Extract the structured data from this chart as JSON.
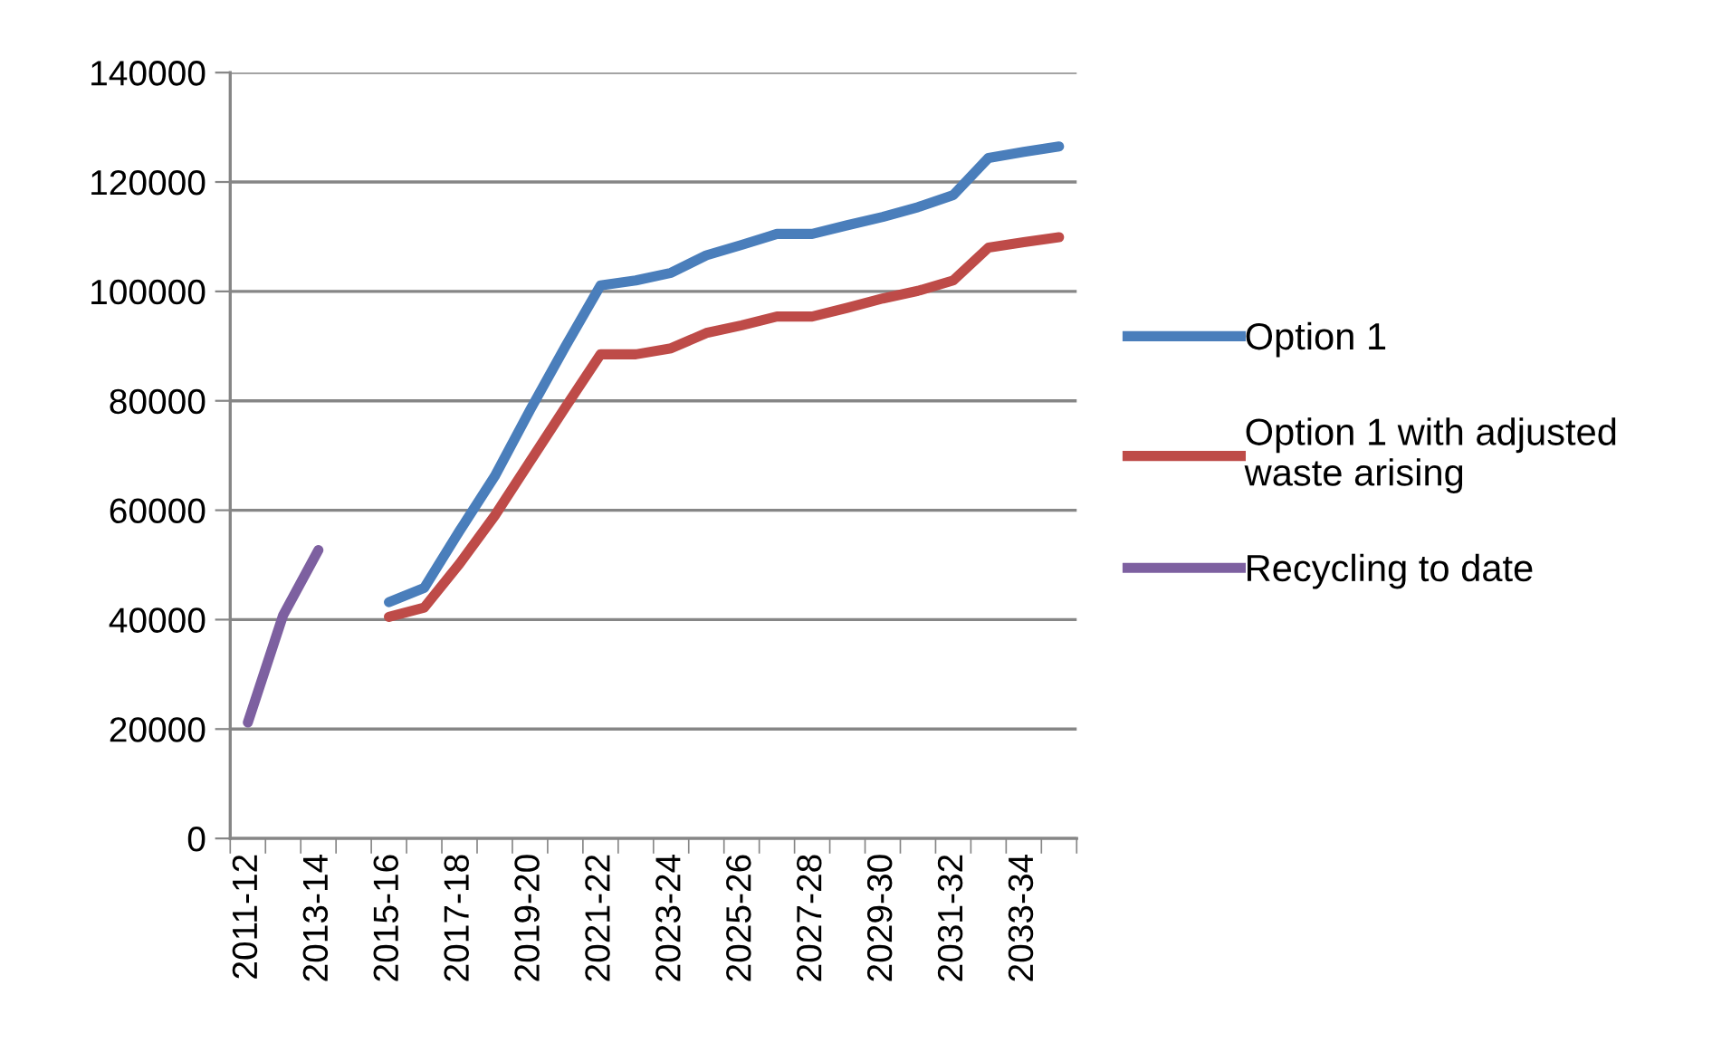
{
  "chart_data": {
    "type": "line",
    "categories": [
      "2011-12",
      null,
      "2013-14",
      null,
      "2015-16",
      null,
      "2017-18",
      null,
      "2019-20",
      null,
      "2021-22",
      null,
      "2023-24",
      null,
      "2025-26",
      null,
      "2027-28",
      null,
      "2029-30",
      null,
      "2031-32",
      null,
      "2033-34",
      null
    ],
    "series": [
      {
        "name": "Option 1",
        "color": "#4a7ebb",
        "values": [
          null,
          null,
          null,
          null,
          43200,
          45800,
          56200,
          66200,
          78300,
          89900,
          101100,
          102000,
          103400,
          106600,
          108500,
          110500,
          110500,
          112100,
          113600,
          115400,
          117600,
          124400,
          125500,
          126500
        ]
      },
      {
        "name": "Option 1 with adjusted\nwaste arising",
        "color": "#be4b48",
        "values": [
          null,
          null,
          null,
          null,
          40500,
          42200,
          50200,
          59000,
          68900,
          78800,
          88500,
          88500,
          89600,
          92400,
          93800,
          95400,
          95400,
          97000,
          98700,
          100100,
          102000,
          108000,
          109000,
          109900
        ]
      },
      {
        "name": "Recycling to date",
        "color": "#7d60a0",
        "values": [
          21200,
          40800,
          52700,
          null,
          null,
          null,
          null,
          null,
          null,
          null,
          null,
          null,
          null,
          null,
          null,
          null,
          null,
          null,
          null,
          null,
          null,
          null,
          null,
          null
        ]
      }
    ],
    "ylim": [
      0,
      140000
    ],
    "yticks": [
      0,
      20000,
      40000,
      60000,
      80000,
      100000,
      120000,
      140000
    ],
    "grid": "y",
    "legend": "right",
    "marker": "none",
    "line_style": "solid"
  }
}
